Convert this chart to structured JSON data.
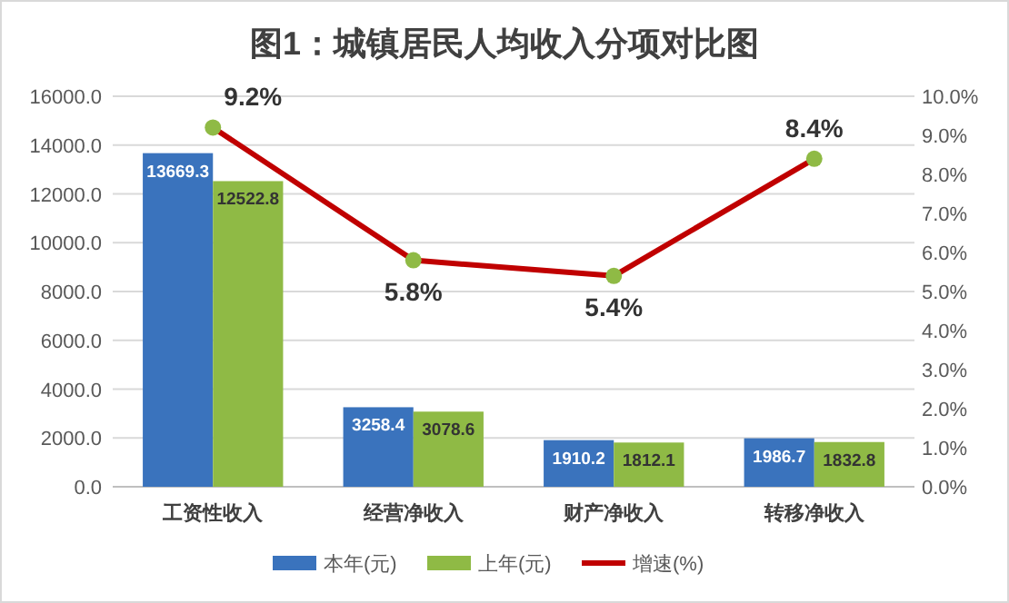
{
  "chart_data": {
    "type": "bar",
    "title": "图1：城镇居民人均收入分项对比图",
    "categories": [
      "工资性收入",
      "经营净收入",
      "财产净收入",
      "转移净收入"
    ],
    "series": [
      {
        "name": "本年(元)",
        "color": "#3a73bd",
        "values": [
          13669.3,
          3258.4,
          1910.2,
          1986.7
        ]
      },
      {
        "name": "上年(元)",
        "color": "#8fba45",
        "values": [
          12522.8,
          3078.6,
          1812.1,
          1832.8
        ]
      },
      {
        "name": "增速(%)",
        "type": "line",
        "axis": "y2",
        "color": "#c00000",
        "marker": "circle",
        "values": [
          9.2,
          5.8,
          5.4,
          8.4
        ],
        "value_labels": [
          "9.2%",
          "5.8%",
          "5.4%",
          "8.4%"
        ]
      }
    ],
    "ylim": [
      0,
      16000
    ],
    "yticks": [
      {
        "value": 0,
        "label": "0.0"
      },
      {
        "value": 2000,
        "label": "2000.0"
      },
      {
        "value": 4000,
        "label": "4000.0"
      },
      {
        "value": 6000,
        "label": "6000.0"
      },
      {
        "value": 8000,
        "label": "8000.0"
      },
      {
        "value": 10000,
        "label": "10000.0"
      },
      {
        "value": 12000,
        "label": "12000.0"
      },
      {
        "value": 14000,
        "label": "14000.0"
      },
      {
        "value": 16000,
        "label": "16000.0"
      }
    ],
    "y2lim": [
      0,
      10
    ],
    "y2ticks": [
      {
        "value": 0,
        "label": "0.0%"
      },
      {
        "value": 1,
        "label": "1.0%"
      },
      {
        "value": 2,
        "label": "2.0%"
      },
      {
        "value": 3,
        "label": "3.0%"
      },
      {
        "value": 4,
        "label": "4.0%"
      },
      {
        "value": 5,
        "label": "5.0%"
      },
      {
        "value": 6,
        "label": "6.0%"
      },
      {
        "value": 7,
        "label": "7.0%"
      },
      {
        "value": 8,
        "label": "8.0%"
      },
      {
        "value": 9,
        "label": "9.0%"
      },
      {
        "value": 10,
        "label": "10.0%"
      }
    ],
    "data_labels": true,
    "grid": "y",
    "legend": "bottom"
  }
}
